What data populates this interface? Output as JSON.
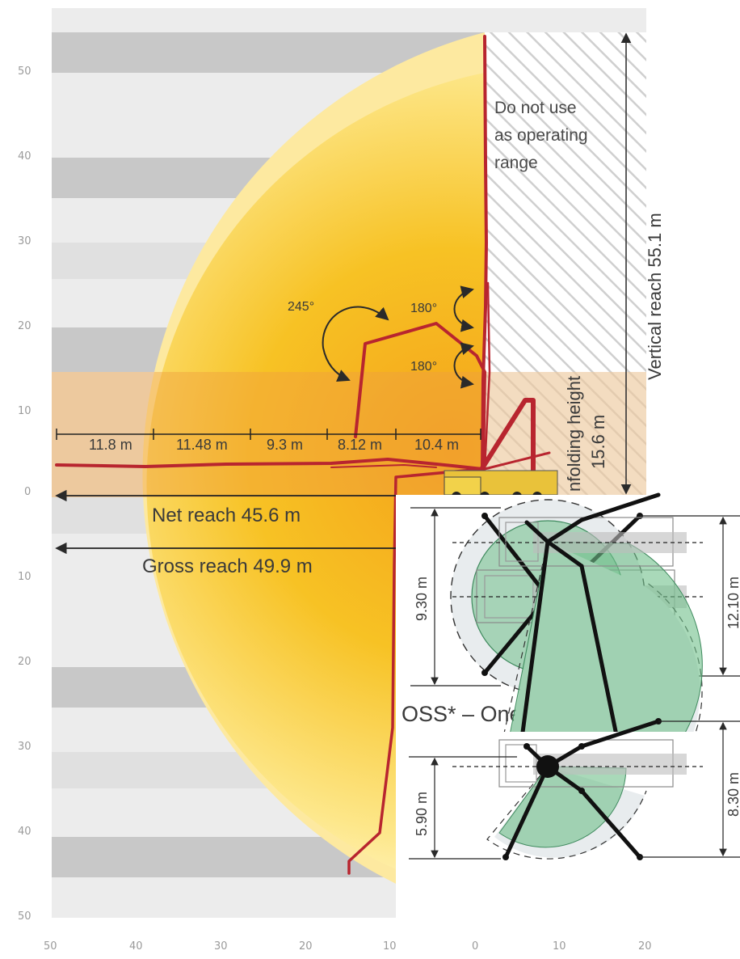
{
  "axes": {
    "y_ticks": [
      "50",
      "40",
      "30",
      "20",
      "10",
      "0",
      "10",
      "20",
      "30",
      "40",
      "50"
    ],
    "x_ticks": [
      "50",
      "40",
      "30",
      "20",
      "10",
      "0",
      "10",
      "20"
    ]
  },
  "labels": {
    "do_not_use": [
      "Do not use",
      "as operating",
      "range"
    ],
    "vertical_reach": "Vertical reach 55.1 m",
    "unfolding_height_line1": "nfolding height",
    "unfolding_height_line2": "15.6 m",
    "angle_245": "245°",
    "angle_180_top": "180°",
    "angle_180_bottom": "180°"
  },
  "segments": [
    "11.8 m",
    "11.48 m",
    "9.3 m",
    "8.12 m",
    "10.4 m"
  ],
  "reach": {
    "net": "Net reach 45.6 m",
    "gross": "Gross reach 49.9 m"
  },
  "support": {
    "full_width": "9.30 m",
    "full_length": "12.10 m",
    "oss_title": "OSS* – One-side support",
    "oss_width": "5.90 m",
    "oss_length": "8.30 m"
  },
  "colors": {
    "boom": "#b8252f",
    "reach_fill": "#f7c21b",
    "unfold_band": "#f0a040",
    "support_green": "#6fc08a"
  }
}
